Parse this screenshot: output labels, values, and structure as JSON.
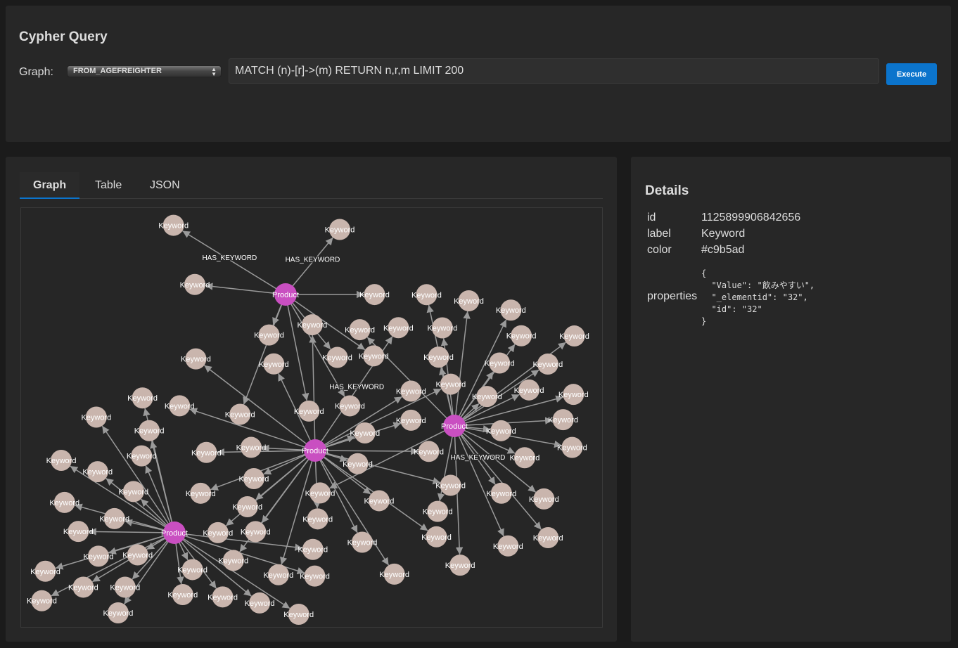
{
  "query": {
    "title": "Cypher Query",
    "graph_label": "Graph:",
    "graph_selected": "FROM_AGEFREIGHTER",
    "query_text": "MATCH (n)-[r]->(m) RETURN n,r,m LIMIT 200",
    "execute_label": "Execute"
  },
  "main": {
    "tabs": [
      {
        "label": "Graph",
        "active": true
      },
      {
        "label": "Table"
      },
      {
        "label": "JSON"
      }
    ]
  },
  "graph": {
    "product_label": "Product",
    "keyword_label": "Keyword",
    "edge_label": "HAS_KEYWORD",
    "product_color": "#c94fc1",
    "keyword_color": "#c9b5ad",
    "edge_color": "#9a9a9a"
  },
  "details": {
    "title": "Details",
    "fields": [
      {
        "key": "id",
        "value": "1125899906842656"
      },
      {
        "key": "label",
        "value": "Keyword"
      },
      {
        "key": "color",
        "value": "#c9b5ad"
      }
    ],
    "properties_key": "properties",
    "properties_value": "{\n  \"Value\": \"飲みやすい\",\n  \"_elementid\": \"32\",\n  \"id\": \"32\"\n}"
  }
}
